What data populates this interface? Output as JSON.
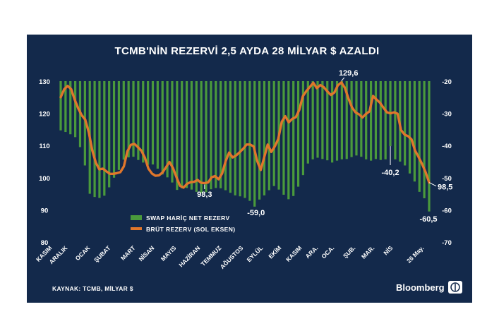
{
  "chart_data": {
    "type": "bar+line",
    "title": "TCMB'NİN REZERVİ 2,5 AYDA 28 MİLYAR $ AZALDI",
    "source": "KAYNAK: TCMB, MİLYAR $",
    "brand": "Bloomberg",
    "x_labels": [
      "KASIM",
      "ARALIK",
      "OCAK",
      "ŞUBAT",
      "MART",
      "NİSAN",
      "MAYIS",
      "HAZİRAN",
      "TEMMUZ",
      "AĞUSTOS",
      "EYLÜL",
      "EKİM",
      "KASIM",
      "ARA.",
      "OCA.",
      "ŞUB.",
      "MAR.",
      "NİS",
      "26 May."
    ],
    "left_axis": {
      "range": [
        80,
        130
      ],
      "ticks": [
        "130",
        "120",
        "110",
        "100",
        "90",
        "80"
      ]
    },
    "right_axis": {
      "range": [
        -70,
        -20
      ],
      "ticks": [
        "-20",
        "-30",
        "-40",
        "-50",
        "-60",
        "-70"
      ]
    },
    "series": [
      {
        "name": "SWAP HARİÇ NET REZERV",
        "type": "bar",
        "axis": "right",
        "color": "#4a9a3c",
        "values": [
          -35.3,
          -35.8,
          -36.5,
          -37.4,
          -40.5,
          -46.2,
          -55,
          -56,
          -56.3,
          -55.6,
          -53,
          -50,
          -47.6,
          -44.4,
          -43.7,
          -43.5,
          -44.5,
          -45.3,
          -46,
          -45.9,
          -47.2,
          -49,
          -49.9,
          -51.5,
          -53.8,
          -53.3,
          -53.2,
          -53.7,
          -54.4,
          -54.8,
          -54.5,
          -53.6,
          -53.2,
          -53.3,
          -53.9,
          -54.7,
          -55.5,
          -55.8,
          -56.3,
          -57.2,
          -59,
          -56.8,
          -55.5,
          -53.9,
          -52.6,
          -53.7,
          -55.3,
          -56.7,
          -55.7,
          -52.8,
          -49.2,
          -45.6,
          -44.3,
          -43.8,
          -44.2,
          -44.6,
          -45.3,
          -44.7,
          -44.3,
          -44.2,
          -43.6,
          -43.1,
          -43.5,
          -44.3,
          -44.7,
          -44.2,
          -44.5,
          -44.3,
          -40.2,
          -44.3,
          -45,
          -46.2,
          -48.7,
          -51.2,
          -54.4,
          -56.4,
          -60.5
        ]
      },
      {
        "name": "BRÜT REZERV (SOL EKSEN)",
        "type": "line",
        "axis": "left",
        "color": "#e0762b",
        "values": [
          125,
          127.5,
          128.5,
          127.5,
          124.2,
          121.5,
          119.4,
          118,
          114.1,
          108.5,
          104.7,
          102.6,
          102.8,
          102,
          101.2,
          101.2,
          101.4,
          101.7,
          103.5,
          108.2,
          110.2,
          110.5,
          109.5,
          108.4,
          106.2,
          102.8,
          101.3,
          100.6,
          100.7,
          101.6,
          103.2,
          104.9,
          103,
          100.1,
          97.5,
          96.9,
          98.1,
          98.6,
          98.7,
          99.3,
          98.4,
          98.3,
          98.5,
          100.1,
          100.5,
          99.5,
          101.3,
          105.1,
          107.8,
          106.3,
          106.9,
          107.9,
          109,
          110.3,
          110.3,
          109.7,
          105.2,
          102.4,
          106.3,
          110.3,
          108,
          109.7,
          112,
          117.4,
          119.1,
          117.2,
          118.3,
          118.8,
          121.1,
          125.3,
          126.9,
          128.2,
          129.5,
          127.8,
          128.8,
          128.1,
          126.8,
          125.7,
          126.5,
          128.7,
          129.6,
          127.9,
          124.6,
          121.9,
          120.3,
          119.7,
          118.7,
          119.8,
          120.6,
          125.4,
          124.3,
          123.3,
          121.7,
          120.3,
          120,
          120.3,
          119.9,
          114.8,
          113.4,
          112.9,
          111.9,
          108.4,
          106.4,
          104.2,
          101.7,
          98.5
        ]
      }
    ],
    "annotations": [
      "129,6",
      "98,3",
      "-59,0",
      "-40,2",
      "98,5",
      "-60,5"
    ],
    "legend_position": "bottom-center"
  }
}
